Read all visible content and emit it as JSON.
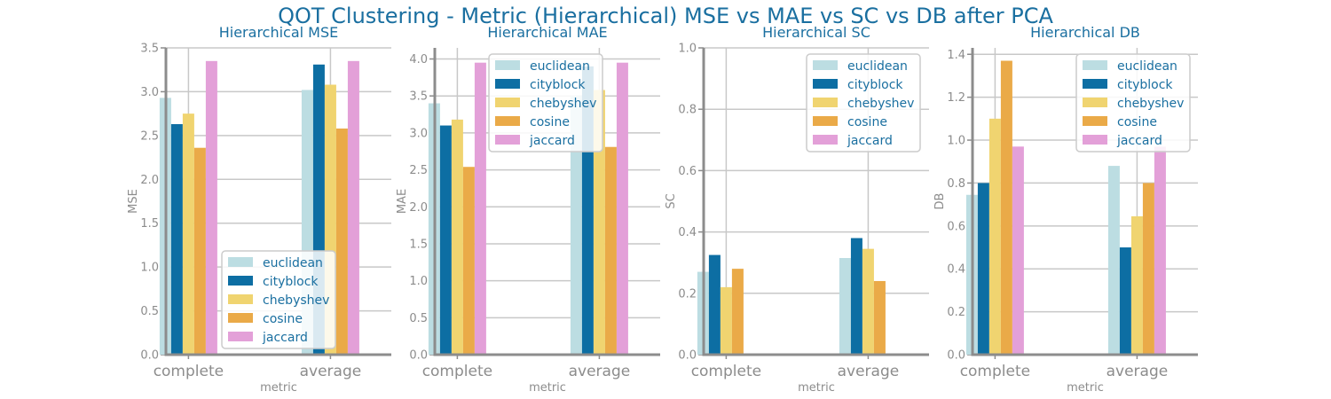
{
  "suptitle": "QOT Clustering - Metric (Hierarchical) MSE vs MAE vs SC vs DB after PCA",
  "colors": {
    "title": "#1a6fa0",
    "axis_text": "#8c8c8c",
    "spine": "#8c8c8c",
    "grid": "#c8c8c8",
    "legend_text": "#1a6fa0"
  },
  "chart_data": [
    {
      "type": "bar",
      "title": "Hierarchical MSE",
      "xlabel": "metric",
      "ylabel": "MSE",
      "categories": [
        "complete",
        "average"
      ],
      "ylim": [
        0,
        3.5
      ],
      "yticks": [
        "0.0",
        "0.5",
        "1.0",
        "1.5",
        "2.0",
        "2.5",
        "3.0",
        "3.5"
      ],
      "legend_position": "lower-center",
      "grid": true,
      "series": [
        {
          "name": "euclidean",
          "color": "#bcdde2",
          "values": [
            2.93,
            3.02
          ]
        },
        {
          "name": "cityblock",
          "color": "#0d6ea3",
          "values": [
            2.63,
            3.31
          ]
        },
        {
          "name": "chebyshev",
          "color": "#f0d470",
          "values": [
            2.75,
            3.08
          ]
        },
        {
          "name": "cosine",
          "color": "#eaaa48",
          "values": [
            2.36,
            2.58
          ]
        },
        {
          "name": "jaccard",
          "color": "#e3a0d8",
          "values": [
            3.35,
            3.35
          ]
        }
      ]
    },
    {
      "type": "bar",
      "title": "Hierarchical MAE",
      "xlabel": "metric",
      "ylabel": "MAE",
      "categories": [
        "complete",
        "average"
      ],
      "ylim": [
        0,
        4.15
      ],
      "yticks": [
        "0.0",
        "0.5",
        "1.0",
        "1.5",
        "2.0",
        "2.5",
        "3.0",
        "3.5",
        "4.0"
      ],
      "legend_position": "upper-center",
      "grid": true,
      "series": [
        {
          "name": "euclidean",
          "color": "#bcdde2",
          "values": [
            3.4,
            3.5
          ]
        },
        {
          "name": "cityblock",
          "color": "#0d6ea3",
          "values": [
            3.1,
            3.9
          ]
        },
        {
          "name": "chebyshev",
          "color": "#f0d470",
          "values": [
            3.18,
            3.58
          ]
        },
        {
          "name": "cosine",
          "color": "#eaaa48",
          "values": [
            2.54,
            2.81
          ]
        },
        {
          "name": "jaccard",
          "color": "#e3a0d8",
          "values": [
            3.95,
            3.95
          ]
        }
      ]
    },
    {
      "type": "bar",
      "title": "Hierarchical SC",
      "xlabel": "metric",
      "ylabel": "SC",
      "categories": [
        "complete",
        "average"
      ],
      "ylim": [
        0,
        1.0
      ],
      "yticks": [
        "0.0",
        "0.2",
        "0.4",
        "0.6",
        "0.8",
        "1.0"
      ],
      "legend_position": "upper-right",
      "grid": true,
      "series": [
        {
          "name": "euclidean",
          "color": "#bcdde2",
          "values": [
            0.27,
            0.315
          ]
        },
        {
          "name": "cityblock",
          "color": "#0d6ea3",
          "values": [
            0.325,
            0.38
          ]
        },
        {
          "name": "chebyshev",
          "color": "#f0d470",
          "values": [
            0.22,
            0.345
          ]
        },
        {
          "name": "cosine",
          "color": "#eaaa48",
          "values": [
            0.28,
            0.24
          ]
        },
        {
          "name": "jaccard",
          "color": "#e3a0d8",
          "values": [
            0,
            0
          ]
        }
      ]
    },
    {
      "type": "bar",
      "title": "Hierarchical DB",
      "xlabel": "metric",
      "ylabel": "DB",
      "categories": [
        "complete",
        "average"
      ],
      "ylim": [
        0,
        1.43
      ],
      "yticks": [
        "0.0",
        "0.2",
        "0.4",
        "0.6",
        "0.8",
        "1.0",
        "1.2",
        "1.4"
      ],
      "legend_position": "upper-right",
      "grid": true,
      "series": [
        {
          "name": "euclidean",
          "color": "#bcdde2",
          "values": [
            0.745,
            0.88
          ]
        },
        {
          "name": "cityblock",
          "color": "#0d6ea3",
          "values": [
            0.8,
            0.5
          ]
        },
        {
          "name": "chebyshev",
          "color": "#f0d470",
          "values": [
            1.1,
            0.645
          ]
        },
        {
          "name": "cosine",
          "color": "#eaaa48",
          "values": [
            1.37,
            0.8
          ]
        },
        {
          "name": "jaccard",
          "color": "#e3a0d8",
          "values": [
            0.97,
            0.97
          ]
        }
      ]
    }
  ]
}
